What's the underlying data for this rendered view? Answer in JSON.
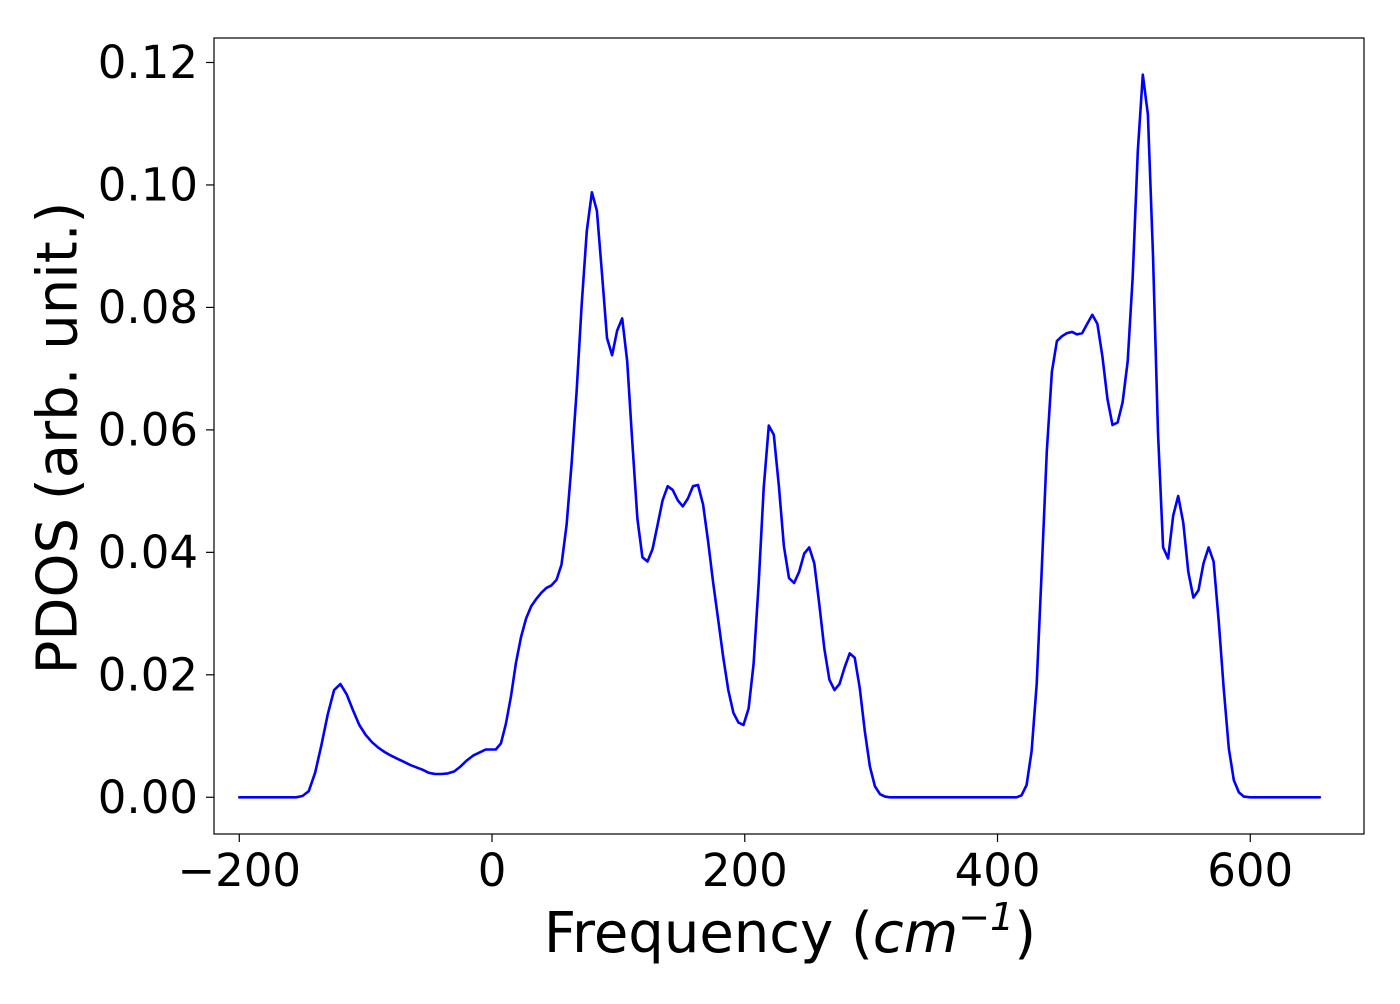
{
  "chart_data": {
    "type": "line",
    "title": "",
    "xlabel": {
      "prefix": "Frequency (",
      "unit_base": "cm",
      "unit_exponent": "−1",
      "suffix": ")"
    },
    "ylabel": "PDOS (arb. unit.)",
    "xlim": [
      -220,
      690
    ],
    "ylim": [
      -0.006,
      0.124
    ],
    "xticks": [
      -200,
      0,
      200,
      400,
      600
    ],
    "xtick_labels": [
      "−200",
      "0",
      "200",
      "400",
      "600"
    ],
    "yticks": [
      0.0,
      0.02,
      0.04,
      0.06,
      0.08,
      0.1,
      0.12
    ],
    "ytick_labels": [
      "0.00",
      "0.02",
      "0.04",
      "0.06",
      "0.08",
      "0.10",
      "0.12"
    ],
    "grid": false,
    "legend": "none",
    "series": [
      {
        "color": "#0000ff",
        "points": [
          [
            -200,
            0.0
          ],
          [
            -170,
            0.0
          ],
          [
            -155,
            0.0
          ],
          [
            -150,
            0.0002
          ],
          [
            -145,
            0.001
          ],
          [
            -140,
            0.004
          ],
          [
            -135,
            0.0085
          ],
          [
            -130,
            0.0135
          ],
          [
            -125,
            0.0175
          ],
          [
            -120,
            0.0185
          ],
          [
            -115,
            0.0168
          ],
          [
            -110,
            0.0142
          ],
          [
            -105,
            0.0118
          ],
          [
            -100,
            0.0102
          ],
          [
            -95,
            0.009
          ],
          [
            -90,
            0.0081
          ],
          [
            -85,
            0.0074
          ],
          [
            -80,
            0.0068
          ],
          [
            -75,
            0.0063
          ],
          [
            -70,
            0.0058
          ],
          [
            -65,
            0.0053
          ],
          [
            -60,
            0.0049
          ],
          [
            -55,
            0.0045
          ],
          [
            -50,
            0.004
          ],
          [
            -45,
            0.0038
          ],
          [
            -40,
            0.0038
          ],
          [
            -35,
            0.0039
          ],
          [
            -30,
            0.0042
          ],
          [
            -25,
            0.005
          ],
          [
            -20,
            0.006
          ],
          [
            -15,
            0.0068
          ],
          [
            -10,
            0.0073
          ],
          [
            -5,
            0.0078
          ],
          [
            0,
            0.0078
          ],
          [
            3,
            0.0078
          ],
          [
            7,
            0.0088
          ],
          [
            11,
            0.012
          ],
          [
            15,
            0.0165
          ],
          [
            19,
            0.022
          ],
          [
            23,
            0.0262
          ],
          [
            27,
            0.0292
          ],
          [
            31,
            0.0312
          ],
          [
            35,
            0.0324
          ],
          [
            39,
            0.0334
          ],
          [
            43,
            0.0342
          ],
          [
            47,
            0.0346
          ],
          [
            51,
            0.0355
          ],
          [
            55,
            0.038
          ],
          [
            59,
            0.0445
          ],
          [
            63,
            0.0545
          ],
          [
            67,
            0.0665
          ],
          [
            71,
            0.0805
          ],
          [
            75,
            0.0925
          ],
          [
            79,
            0.0988
          ],
          [
            83,
            0.0958
          ],
          [
            87,
            0.0855
          ],
          [
            91,
            0.075
          ],
          [
            95,
            0.0722
          ],
          [
            99,
            0.0762
          ],
          [
            103,
            0.0782
          ],
          [
            107,
            0.0712
          ],
          [
            111,
            0.058
          ],
          [
            115,
            0.0455
          ],
          [
            119,
            0.0392
          ],
          [
            123,
            0.0385
          ],
          [
            127,
            0.0405
          ],
          [
            131,
            0.0445
          ],
          [
            135,
            0.0485
          ],
          [
            139,
            0.0508
          ],
          [
            143,
            0.0502
          ],
          [
            147,
            0.0485
          ],
          [
            151,
            0.0475
          ],
          [
            155,
            0.0488
          ],
          [
            159,
            0.0508
          ],
          [
            163,
            0.051
          ],
          [
            167,
            0.0478
          ],
          [
            171,
            0.0418
          ],
          [
            175,
            0.035
          ],
          [
            179,
            0.029
          ],
          [
            183,
            0.0228
          ],
          [
            187,
            0.0175
          ],
          [
            191,
            0.0138
          ],
          [
            195,
            0.0122
          ],
          [
            199,
            0.0118
          ],
          [
            203,
            0.0145
          ],
          [
            207,
            0.0218
          ],
          [
            211,
            0.035
          ],
          [
            215,
            0.0505
          ],
          [
            219,
            0.0607
          ],
          [
            223,
            0.0592
          ],
          [
            227,
            0.0508
          ],
          [
            231,
            0.041
          ],
          [
            235,
            0.0358
          ],
          [
            239,
            0.035
          ],
          [
            243,
            0.0368
          ],
          [
            247,
            0.0398
          ],
          [
            251,
            0.0408
          ],
          [
            255,
            0.0382
          ],
          [
            259,
            0.0315
          ],
          [
            263,
            0.0242
          ],
          [
            267,
            0.0192
          ],
          [
            271,
            0.0175
          ],
          [
            275,
            0.0185
          ],
          [
            279,
            0.0212
          ],
          [
            283,
            0.0235
          ],
          [
            287,
            0.0228
          ],
          [
            291,
            0.0178
          ],
          [
            295,
            0.0108
          ],
          [
            299,
            0.005
          ],
          [
            303,
            0.0018
          ],
          [
            307,
            0.0005
          ],
          [
            311,
            0.0001
          ],
          [
            315,
            0.0
          ],
          [
            330,
            0.0
          ],
          [
            360,
            0.0
          ],
          [
            400,
            0.0
          ],
          [
            415,
            0.0
          ],
          [
            419,
            0.0003
          ],
          [
            423,
            0.002
          ],
          [
            427,
            0.0075
          ],
          [
            431,
            0.0185
          ],
          [
            435,
            0.037
          ],
          [
            439,
            0.0565
          ],
          [
            443,
            0.0695
          ],
          [
            447,
            0.0745
          ],
          [
            451,
            0.0753
          ],
          [
            455,
            0.0758
          ],
          [
            459,
            0.076
          ],
          [
            463,
            0.0756
          ],
          [
            467,
            0.0758
          ],
          [
            471,
            0.0773
          ],
          [
            475,
            0.0788
          ],
          [
            479,
            0.0773
          ],
          [
            483,
            0.072
          ],
          [
            487,
            0.065
          ],
          [
            491,
            0.0608
          ],
          [
            495,
            0.0612
          ],
          [
            499,
            0.0645
          ],
          [
            503,
            0.0712
          ],
          [
            507,
            0.085
          ],
          [
            511,
            0.1055
          ],
          [
            515,
            0.118
          ],
          [
            519,
            0.1115
          ],
          [
            523,
            0.0885
          ],
          [
            527,
            0.0595
          ],
          [
            531,
            0.0408
          ],
          [
            535,
            0.039
          ],
          [
            539,
            0.046
          ],
          [
            543,
            0.0492
          ],
          [
            547,
            0.0448
          ],
          [
            551,
            0.0368
          ],
          [
            555,
            0.0326
          ],
          [
            559,
            0.0338
          ],
          [
            563,
            0.0382
          ],
          [
            567,
            0.0408
          ],
          [
            571,
            0.0385
          ],
          [
            575,
            0.0288
          ],
          [
            579,
            0.0178
          ],
          [
            583,
            0.008
          ],
          [
            587,
            0.0028
          ],
          [
            591,
            0.0008
          ],
          [
            595,
            0.0001
          ],
          [
            600,
            0.0
          ],
          [
            620,
            0.0
          ],
          [
            650,
            0.0
          ],
          [
            655,
            0.0
          ]
        ]
      }
    ]
  }
}
